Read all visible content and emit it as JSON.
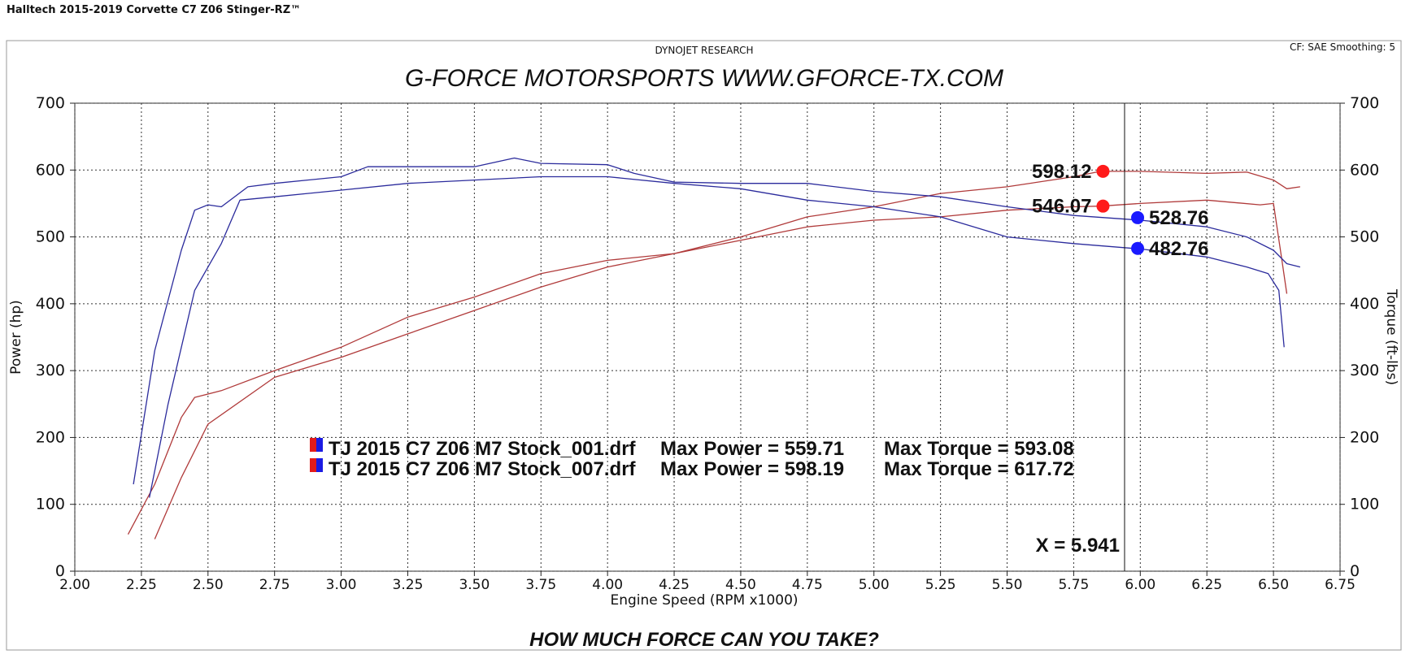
{
  "header": "Halltech 2015-2019 Corvette C7 Z06 Stinger-RZ™",
  "chart_data": {
    "type": "line",
    "source": "DYNOJET RESEARCH",
    "settings": "CF: SAE  Smoothing: 5",
    "title": "G-FORCE MOTORSPORTS WWW.GFORCE-TX.COM",
    "footer": "HOW MUCH FORCE CAN YOU TAKE?",
    "xlabel": "Engine Speed (RPM x1000)",
    "ylabel": "Power (hp)",
    "y2label": "Torque (ft-lbs)",
    "xlim": [
      2.0,
      6.75
    ],
    "xticks": [
      {
        "value": 2.0,
        "label": "2.00"
      },
      {
        "value": 2.25,
        "label": "2.25"
      },
      {
        "value": 2.5,
        "label": "2.50"
      },
      {
        "value": 2.75,
        "label": "2.75"
      },
      {
        "value": 3.0,
        "label": "3.00"
      },
      {
        "value": 3.25,
        "label": "3.25"
      },
      {
        "value": 3.5,
        "label": "3.50"
      },
      {
        "value": 3.75,
        "label": "3.75"
      },
      {
        "value": 4.0,
        "label": "4.00"
      },
      {
        "value": 4.25,
        "label": "4.25"
      },
      {
        "value": 4.5,
        "label": "4.50"
      },
      {
        "value": 4.75,
        "label": "4.75"
      },
      {
        "value": 5.0,
        "label": "5.00"
      },
      {
        "value": 5.25,
        "label": "5.25"
      },
      {
        "value": 5.5,
        "label": "5.50"
      },
      {
        "value": 5.75,
        "label": "5.75"
      },
      {
        "value": 6.0,
        "label": "6.00"
      },
      {
        "value": 6.25,
        "label": "6.25"
      },
      {
        "value": 6.5,
        "label": "6.50"
      },
      {
        "value": 6.75,
        "label": "6.75"
      }
    ],
    "ylim": [
      0,
      700
    ],
    "yticks": [
      0,
      100,
      200,
      300,
      400,
      500,
      600,
      700
    ],
    "y2lim": [
      0,
      700
    ],
    "y2ticks": [
      0,
      100,
      200,
      300,
      400,
      500,
      600,
      700
    ],
    "grid": true,
    "series": [
      {
        "color": "#b03a3a",
        "x": [
          2.3,
          2.4,
          2.5,
          2.75,
          3.0,
          3.25,
          3.5,
          3.75,
          4.0,
          4.25,
          4.5,
          4.75,
          5.0,
          5.25,
          5.5,
          5.75,
          5.85,
          6.0,
          6.25,
          6.45,
          6.5,
          6.53,
          6.55
        ],
        "values": [
          48,
          140,
          220,
          290,
          320,
          355,
          390,
          425,
          455,
          475,
          495,
          515,
          525,
          530,
          540,
          545,
          546,
          550,
          555,
          548,
          550,
          470,
          415
        ]
      },
      {
        "color": "#b03a3a",
        "x": [
          2.2,
          2.3,
          2.4,
          2.45,
          2.55,
          2.75,
          3.0,
          3.25,
          3.5,
          3.75,
          4.0,
          4.25,
          4.5,
          4.75,
          5.0,
          5.25,
          5.5,
          5.75,
          5.85,
          6.0,
          6.25,
          6.4,
          6.5,
          6.55,
          6.6
        ],
        "values": [
          55,
          130,
          230,
          260,
          270,
          300,
          335,
          380,
          410,
          445,
          465,
          475,
          500,
          530,
          545,
          565,
          575,
          590,
          598,
          598,
          595,
          597,
          585,
          572,
          575
        ]
      },
      {
        "color": "#2b2b9c",
        "axis": "y2",
        "x": [
          2.28,
          2.35,
          2.45,
          2.55,
          2.62,
          2.75,
          3.0,
          3.25,
          3.5,
          3.75,
          4.0,
          4.25,
          4.5,
          4.75,
          5.0,
          5.25,
          5.5,
          5.75,
          6.0,
          6.25,
          6.4,
          6.48,
          6.52,
          6.54
        ],
        "values": [
          110,
          250,
          420,
          490,
          555,
          560,
          570,
          580,
          585,
          590,
          590,
          580,
          572,
          555,
          545,
          530,
          500,
          490,
          482,
          470,
          455,
          445,
          420,
          335
        ]
      },
      {
        "color": "#2b2b9c",
        "axis": "y2",
        "x": [
          2.22,
          2.3,
          2.4,
          2.45,
          2.5,
          2.55,
          2.65,
          2.75,
          3.0,
          3.1,
          3.25,
          3.5,
          3.65,
          3.75,
          4.0,
          4.1,
          4.25,
          4.5,
          4.75,
          5.0,
          5.25,
          5.5,
          5.75,
          6.0,
          6.25,
          6.4,
          6.5,
          6.55,
          6.6
        ],
        "values": [
          130,
          330,
          480,
          540,
          548,
          545,
          575,
          580,
          590,
          605,
          605,
          605,
          618,
          610,
          608,
          595,
          582,
          580,
          580,
          568,
          560,
          545,
          532,
          525,
          515,
          500,
          480,
          460,
          455
        ]
      }
    ],
    "markers": [
      {
        "x": 5.86,
        "value": 598.12,
        "color": "#ff1a1a"
      },
      {
        "x": 5.86,
        "value": 546.07,
        "color": "#ff1a1a"
      },
      {
        "x": 5.99,
        "value": 528.76,
        "color": "#1a1aff",
        "axis": "y2"
      },
      {
        "x": 5.99,
        "value": 482.76,
        "color": "#1a1aff",
        "axis": "y2"
      }
    ],
    "cursor": {
      "value": 5.941,
      "label": "X = 5.941"
    },
    "legend": [
      {
        "file": "TJ 2015 C7 Z06 M7 Stock_001.drf",
        "power": "Max Power = 559.71",
        "torque": "Max Torque = 593.08"
      },
      {
        "file": "TJ 2015 C7 Z06 M7 Stock_007.drf",
        "power": "Max Power = 598.19",
        "torque": "Max Torque = 617.72"
      }
    ]
  }
}
